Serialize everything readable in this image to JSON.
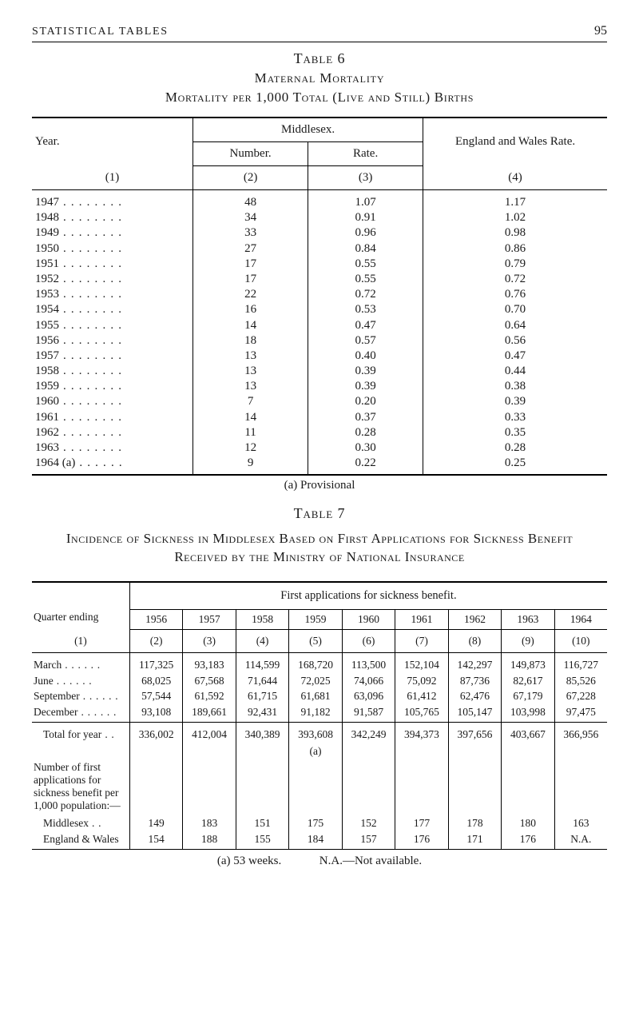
{
  "header": {
    "left": "STATISTICAL TABLES",
    "page": "95"
  },
  "table6": {
    "label": "Table 6",
    "title1": "Maternal Mortality",
    "title2": "Mortality per 1,000 Total (Live and Still) Births",
    "columns": {
      "year": "Year.",
      "middlesex": "Middlesex.",
      "number": "Number.",
      "rate": "Rate.",
      "eng": "England and Wales Rate.",
      "c1": "(1)",
      "c2": "(2)",
      "c3": "(3)",
      "c4": "(4)"
    },
    "rows": [
      {
        "year": "1947",
        "num": "48",
        "rate": "1.07",
        "eng": "1.17"
      },
      {
        "year": "1948",
        "num": "34",
        "rate": "0.91",
        "eng": "1.02"
      },
      {
        "year": "1949",
        "num": "33",
        "rate": "0.96",
        "eng": "0.98"
      },
      {
        "year": "1950",
        "num": "27",
        "rate": "0.84",
        "eng": "0.86"
      },
      {
        "year": "1951",
        "num": "17",
        "rate": "0.55",
        "eng": "0.79"
      },
      {
        "year": "1952",
        "num": "17",
        "rate": "0.55",
        "eng": "0.72"
      },
      {
        "year": "1953",
        "num": "22",
        "rate": "0.72",
        "eng": "0.76"
      },
      {
        "year": "1954",
        "num": "16",
        "rate": "0.53",
        "eng": "0.70"
      },
      {
        "year": "1955",
        "num": "14",
        "rate": "0.47",
        "eng": "0.64"
      },
      {
        "year": "1956",
        "num": "18",
        "rate": "0.57",
        "eng": "0.56"
      },
      {
        "year": "1957",
        "num": "13",
        "rate": "0.40",
        "eng": "0.47"
      },
      {
        "year": "1958",
        "num": "13",
        "rate": "0.39",
        "eng": "0.44"
      },
      {
        "year": "1959",
        "num": "13",
        "rate": "0.39",
        "eng": "0.38"
      },
      {
        "year": "1960",
        "num": "7",
        "rate": "0.20",
        "eng": "0.39"
      },
      {
        "year": "1961",
        "num": "14",
        "rate": "0.37",
        "eng": "0.33"
      },
      {
        "year": "1962",
        "num": "11",
        "rate": "0.28",
        "eng": "0.35"
      },
      {
        "year": "1963",
        "num": "12",
        "rate": "0.30",
        "eng": "0.28"
      },
      {
        "year": "1964 (a)",
        "num": "9",
        "rate": "0.22",
        "eng": "0.25",
        "nodots": true
      }
    ],
    "provisional": "(a) Provisional"
  },
  "table7": {
    "label": "Table 7",
    "title": "Incidence of Sickness in Middlesex Based on First Applications for Sickness Benefit Received by the Ministry of National Insurance",
    "caption": "First applications for sickness benefit.",
    "qlabel": "Quarter ending",
    "c1": "(1)",
    "years": [
      "1956",
      "1957",
      "1958",
      "1959",
      "1960",
      "1961",
      "1962",
      "1963",
      "1964"
    ],
    "colnums": [
      "(2)",
      "(3)",
      "(4)",
      "(5)",
      "(6)",
      "(7)",
      "(8)",
      "(9)",
      "(10)"
    ],
    "block1": [
      {
        "q": "March",
        "v": [
          "117,325",
          "93,183",
          "114,599",
          "168,720",
          "113,500",
          "152,104",
          "142,297",
          "149,873",
          "116,727"
        ]
      },
      {
        "q": "June",
        "v": [
          "68,025",
          "67,568",
          "71,644",
          "72,025",
          "74,066",
          "75,092",
          "87,736",
          "82,617",
          "85,526"
        ]
      },
      {
        "q": "September",
        "v": [
          "57,544",
          "61,592",
          "61,715",
          "61,681",
          "63,096",
          "61,412",
          "62,476",
          "67,179",
          "67,228"
        ]
      },
      {
        "q": "December",
        "v": [
          "93,108",
          "189,661",
          "92,431",
          "91,182",
          "91,587",
          "105,765",
          "105,147",
          "103,998",
          "97,475"
        ]
      }
    ],
    "total_label": "Total for year",
    "total_v": [
      "336,002",
      "412,004",
      "340,389",
      "393,608",
      "342,249",
      "394,373",
      "397,656",
      "403,667",
      "366,956"
    ],
    "total_note": "(a)",
    "leftwrap": "Number of first applications for sickness benefit per 1,000 population:—",
    "midd_label": "Middlesex",
    "midd_v": [
      "149",
      "183",
      "151",
      "175",
      "152",
      "177",
      "178",
      "180",
      "163"
    ],
    "ew_label": "England & Wales",
    "ew_v": [
      "154",
      "188",
      "155",
      "184",
      "157",
      "176",
      "171",
      "176",
      "N.A."
    ],
    "footnote_a": "(a) 53 weeks.",
    "footnote_b": "N.A.—Not available."
  }
}
